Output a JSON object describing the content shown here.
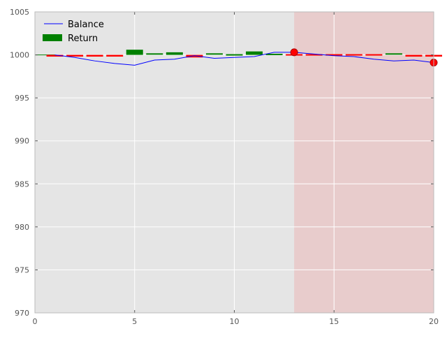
{
  "chart_data": {
    "type": "line",
    "title": "",
    "xlabel": "",
    "ylabel": "",
    "xlim": [
      0,
      20
    ],
    "ylim": [
      970,
      1005
    ],
    "x_ticks": [
      0,
      5,
      10,
      15,
      20
    ],
    "y_ticks": [
      970,
      975,
      980,
      985,
      990,
      995,
      1000,
      1005
    ],
    "grid": true,
    "legend_position": "top-left",
    "background_color": "#e5e5e5",
    "highlight_region": {
      "x_start": 13,
      "x_end": 20,
      "color": "#e8cccc"
    },
    "series": [
      {
        "name": "Balance",
        "type": "line",
        "color": "#0000ff",
        "x": [
          1,
          2,
          3,
          4,
          5,
          6,
          7,
          8,
          9,
          10,
          11,
          12,
          13,
          14,
          15,
          16,
          17,
          18,
          19,
          20
        ],
        "values": [
          1000.0,
          999.7,
          999.3,
          999.0,
          998.8,
          999.4,
          999.5,
          999.9,
          999.6,
          999.7,
          999.8,
          1000.3,
          1000.3,
          1000.1,
          999.9,
          999.8,
          999.5,
          999.3,
          999.4,
          999.1
        ]
      },
      {
        "name": "Return",
        "type": "bar",
        "positive_color": "#008000",
        "negative_color": "#ff0000",
        "baseline": 1000,
        "x": [
          1,
          2,
          3,
          4,
          5,
          6,
          7,
          8,
          9,
          10,
          11,
          12,
          13,
          14,
          15,
          16,
          17,
          18,
          19,
          20
        ],
        "values": [
          -0.2,
          -0.2,
          -0.2,
          -0.2,
          0.6,
          0.1,
          0.3,
          -0.3,
          0.1,
          0.0,
          0.4,
          0.05,
          -0.15,
          -0.1,
          -0.1,
          -0.1,
          -0.1,
          0.1,
          -0.2,
          -0.2
        ]
      }
    ],
    "markers": [
      {
        "x": 13,
        "y": 1000.3,
        "color": "#ff0000"
      },
      {
        "x": 20,
        "y": 999.1,
        "color": "#ff0000"
      }
    ]
  }
}
